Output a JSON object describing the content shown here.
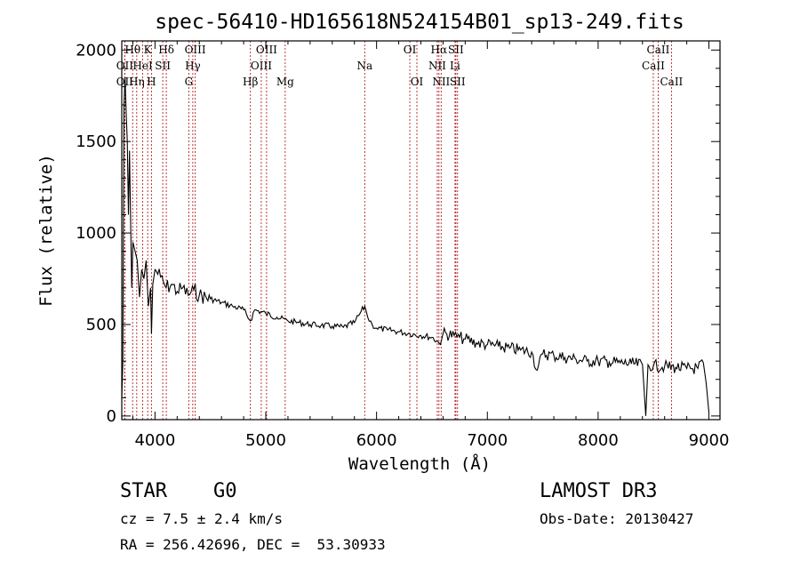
{
  "chart_data": {
    "type": "line",
    "title": "spec-56410-HD165618N524154B01_sp13-249.fits",
    "xlabel": "Wavelength (Å)",
    "ylabel": "Flux (relative)",
    "xlim": [
      3700,
      9100
    ],
    "ylim": [
      -20,
      2050
    ],
    "xticks": [
      4000,
      5000,
      6000,
      7000,
      8000,
      9000
    ],
    "xtick_labels": [
      "4000",
      "5000",
      "6000",
      "7000",
      "8000",
      "9000"
    ],
    "yticks": [
      0,
      500,
      1000,
      1500,
      2000
    ],
    "ytick_labels": [
      "0",
      "500",
      "1000",
      "1500",
      "2000"
    ],
    "grid": false,
    "line_color": "#000000",
    "marker_color": "#b22222",
    "series": [
      {
        "x": [
          3700,
          3710,
          3720,
          3730,
          3740,
          3750,
          3760,
          3770,
          3780,
          3790,
          3800,
          3820,
          3840,
          3860,
          3880,
          3900,
          3920,
          3940,
          3960,
          3968,
          3980,
          4000,
          4050,
          4100,
          4150,
          4200,
          4250,
          4300,
          4350,
          4400,
          4500,
          4600,
          4700,
          4800,
          4861,
          4900,
          5000,
          5100,
          5200,
          5300,
          5400,
          5500,
          5600,
          5700,
          5800,
          5850,
          5893,
          5920,
          5960,
          6000,
          6100,
          6200,
          6300,
          6400,
          6500,
          6563,
          6600,
          6700,
          6750,
          6800,
          6900,
          7000,
          7100,
          7200,
          7300,
          7400,
          7450,
          7500,
          7600,
          7700,
          7800,
          7900,
          8000,
          8100,
          8200,
          8300,
          8400,
          8430,
          8450,
          8500,
          8600,
          8700,
          8800,
          8900,
          8950,
          9000
        ],
        "y": [
          100,
          300,
          1700,
          1850,
          1650,
          1500,
          1100,
          1450,
          1050,
          700,
          950,
          900,
          850,
          650,
          800,
          750,
          850,
          600,
          700,
          450,
          720,
          800,
          760,
          700,
          720,
          680,
          700,
          660,
          690,
          660,
          640,
          620,
          600,
          580,
          520,
          580,
          560,
          540,
          520,
          510,
          500,
          495,
          490,
          485,
          510,
          560,
          600,
          540,
          500,
          480,
          470,
          460,
          450,
          440,
          430,
          400,
          450,
          440,
          430,
          420,
          400,
          390,
          380,
          370,
          360,
          350,
          250,
          340,
          330,
          320,
          310,
          300,
          300,
          295,
          290,
          285,
          280,
          0,
          280,
          275,
          270,
          265,
          260,
          260,
          290,
          20
        ]
      }
    ],
    "lines": [
      {
        "label": "OII",
        "wavelength": 3727,
        "row": 1,
        "pos": "center"
      },
      {
        "label": "OII",
        "wavelength": 3727,
        "row": 2,
        "pos": "center"
      },
      {
        "label": "Hθ",
        "wavelength": 3798,
        "row": 0,
        "pos": "center"
      },
      {
        "label": "Hη",
        "wavelength": 3835,
        "row": 2,
        "pos": "center"
      },
      {
        "label": "HeI",
        "wavelength": 3889,
        "row": 1,
        "pos": "center"
      },
      {
        "label": "K",
        "wavelength": 3934,
        "row": 0,
        "pos": "center"
      },
      {
        "label": "H",
        "wavelength": 3968,
        "row": 2,
        "pos": "center"
      },
      {
        "label": "SII",
        "wavelength": 4070,
        "row": 1,
        "pos": "center"
      },
      {
        "label": "Hδ",
        "wavelength": 4102,
        "row": 0,
        "pos": "center"
      },
      {
        "label": "G",
        "wavelength": 4305,
        "row": 2,
        "pos": "center"
      },
      {
        "label": "Hγ",
        "wavelength": 4341,
        "row": 1,
        "pos": "center"
      },
      {
        "label": "OIII",
        "wavelength": 4363,
        "row": 0,
        "pos": "center"
      },
      {
        "label": "Hβ",
        "wavelength": 4861,
        "row": 2,
        "pos": "center"
      },
      {
        "label": "OIII",
        "wavelength": 4959,
        "row": 1,
        "pos": "center"
      },
      {
        "label": "OIII",
        "wavelength": 5007,
        "row": 0,
        "pos": "center"
      },
      {
        "label": "Mg",
        "wavelength": 5175,
        "row": 2,
        "pos": "center"
      },
      {
        "label": "Na",
        "wavelength": 5893,
        "row": 1,
        "pos": "center"
      },
      {
        "label": "OI",
        "wavelength": 6300,
        "row": 0,
        "pos": "center"
      },
      {
        "label": "OI",
        "wavelength": 6364,
        "row": 2,
        "pos": "center"
      },
      {
        "label": "NII",
        "wavelength": 6548,
        "row": 1,
        "pos": "center"
      },
      {
        "label": "Hα",
        "wavelength": 6563,
        "row": 0,
        "pos": "center"
      },
      {
        "label": "NII",
        "wavelength": 6583,
        "row": 2,
        "pos": "center"
      },
      {
        "label": "Li",
        "wavelength": 6708,
        "row": 1,
        "pos": "center"
      },
      {
        "label": "SII",
        "wavelength": 6716,
        "row": 0,
        "pos": "center"
      },
      {
        "label": "SII",
        "wavelength": 6731,
        "row": 2,
        "pos": "center"
      },
      {
        "label": "CaII",
        "wavelength": 8498,
        "row": 1,
        "pos": "center"
      },
      {
        "label": "CaII",
        "wavelength": 8542,
        "row": 0,
        "pos": "center"
      },
      {
        "label": "CaII",
        "wavelength": 8662,
        "row": 2,
        "pos": "center"
      }
    ]
  },
  "info": {
    "object_class": "STAR",
    "subclass": "G0",
    "survey": "LAMOST DR3",
    "cz": "cz = 7.5 ± 2.4 km/s",
    "obs_date": "Obs-Date: 20130427",
    "coords": "RA = 256.42696, DEC =  53.30933"
  }
}
